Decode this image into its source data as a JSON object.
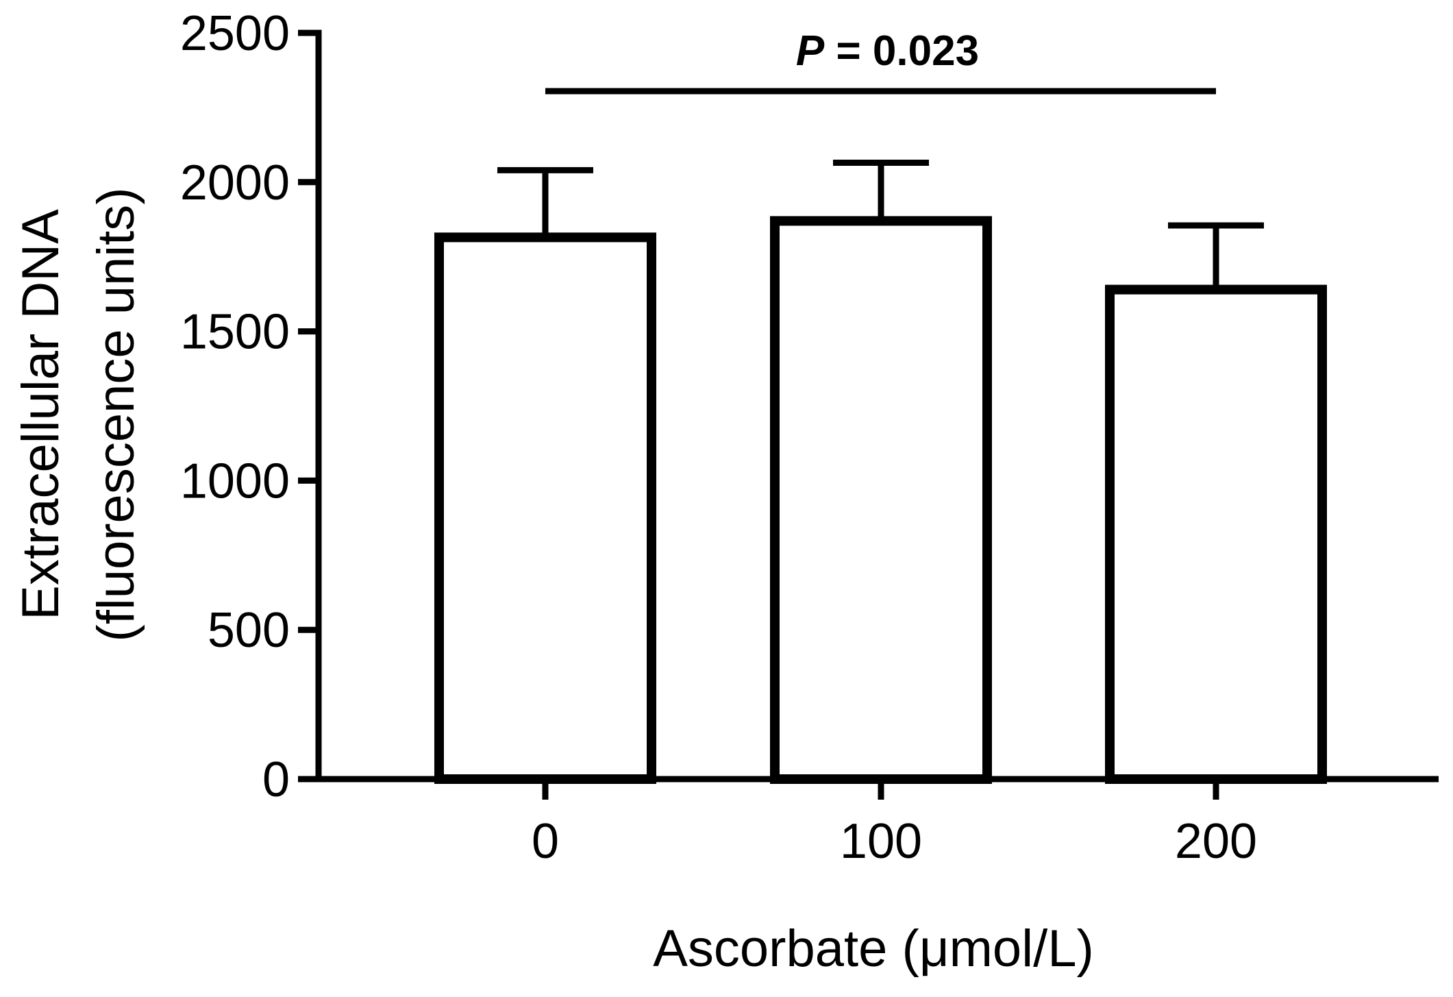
{
  "chart_data": {
    "type": "bar",
    "categories": [
      "0",
      "100",
      "200"
    ],
    "values": [
      1815,
      1870,
      1640
    ],
    "error_upper": [
      2040,
      2065,
      1855
    ],
    "xlabel": "Ascorbate (μmol/L)",
    "ylabel_line1": "Extracellular DNA",
    "ylabel_line2": "(fluorescence units)",
    "ylim": [
      0,
      2500
    ],
    "yticks": [
      "0",
      "500",
      "1000",
      "1500",
      "2000",
      "2500"
    ],
    "grid": false,
    "bar_fill": "#ffffff",
    "bar_stroke": "#000000",
    "annotation": {
      "p_symbol": "P",
      "p_text": " = 0.023",
      "from_category": "0",
      "to_category": "200"
    }
  }
}
